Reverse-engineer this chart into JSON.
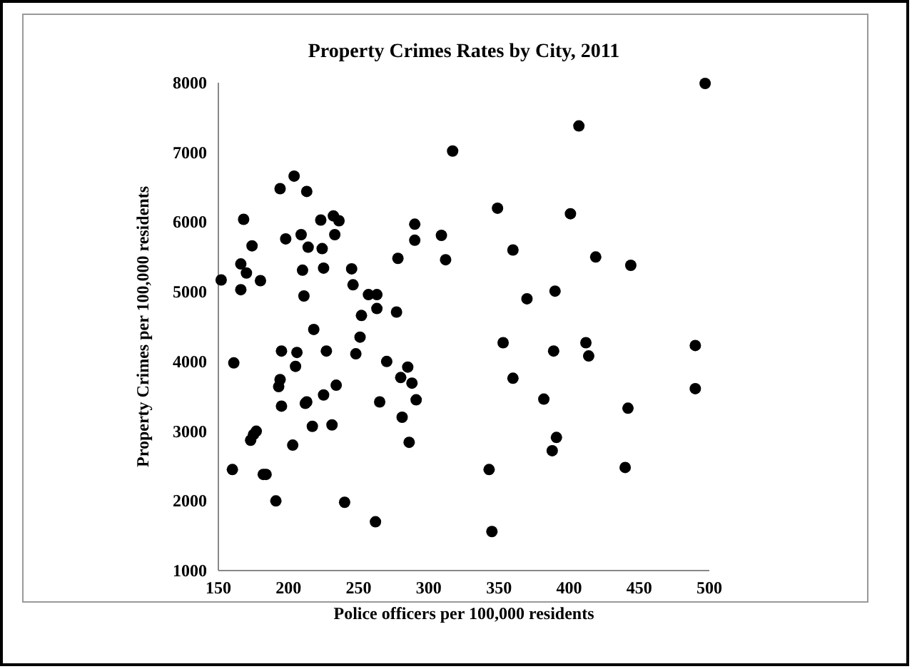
{
  "chart_data": {
    "type": "scatter",
    "title": "Property Crimes Rates by City, 2011",
    "xlabel": "Police officers per 100,000 residents",
    "ylabel": "Property Crimes per 100,000 residents",
    "xlim": [
      150,
      500
    ],
    "xticks": [
      150,
      200,
      250,
      300,
      350,
      400,
      450,
      500
    ],
    "ylim": [
      1000,
      8000
    ],
    "yticks": [
      1000,
      2000,
      3000,
      4000,
      5000,
      6000,
      7000,
      8000
    ],
    "grid": false,
    "marker": "circle",
    "series": [
      {
        "color": "#000000",
        "x": [
          152,
          160,
          161,
          166,
          166,
          168,
          170,
          174,
          173,
          175,
          177,
          180,
          182,
          184,
          191,
          193,
          194,
          194,
          195,
          195,
          198,
          203,
          204,
          205,
          206,
          209,
          210,
          211,
          212,
          213,
          213,
          214,
          217,
          218,
          223,
          224,
          225,
          225,
          227,
          231,
          232,
          233,
          234,
          236,
          240,
          245,
          246,
          248,
          251,
          252,
          257,
          262,
          263,
          263,
          265,
          270,
          277,
          278,
          280,
          281,
          285,
          286,
          288,
          290,
          290,
          291,
          309,
          312,
          317,
          343,
          345,
          349,
          353,
          360,
          360,
          370,
          382,
          388,
          389,
          390,
          391,
          401,
          407,
          412,
          414,
          419,
          440,
          442,
          444,
          490,
          490,
          497
        ],
        "values": [
          5170,
          2450,
          3980,
          5400,
          5030,
          6040,
          5270,
          5660,
          2870,
          2950,
          3000,
          5160,
          2380,
          2380,
          2000,
          3640,
          3740,
          6480,
          4150,
          3360,
          5760,
          2800,
          6660,
          3930,
          4130,
          5820,
          5310,
          4940,
          3400,
          6440,
          3420,
          5640,
          3070,
          4460,
          6030,
          5620,
          5340,
          3520,
          4150,
          3090,
          6090,
          5820,
          3660,
          6020,
          1980,
          5330,
          5100,
          4110,
          4350,
          4660,
          4960,
          1700,
          4960,
          4760,
          3420,
          4000,
          4710,
          5480,
          3770,
          3200,
          3920,
          2840,
          3690,
          5970,
          5740,
          3450,
          5810,
          5460,
          7020,
          2450,
          1560,
          6200,
          4270,
          5600,
          3760,
          4900,
          3460,
          2720,
          4150,
          5010,
          2910,
          6120,
          7380,
          4270,
          4080,
          5500,
          2480,
          3330,
          5380,
          4230,
          3610,
          7990
        ]
      }
    ]
  }
}
